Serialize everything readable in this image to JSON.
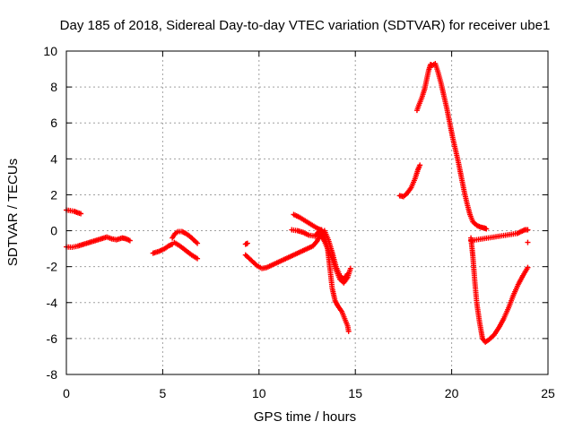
{
  "chart_data": {
    "type": "scatter",
    "title": "Day 185 of 2018, Sidereal Day-to-day VTEC variation (SDTVAR) for receiver ube1",
    "xlabel": "GPS time / hours",
    "ylabel": "SDTVAR / TECUs",
    "xlim": [
      0,
      25
    ],
    "ylim": [
      -8,
      10
    ],
    "xticks": [
      0,
      5,
      10,
      15,
      20,
      25
    ],
    "yticks": [
      -8,
      -6,
      -4,
      -2,
      0,
      2,
      4,
      6,
      8,
      10
    ],
    "grid": true,
    "marker": "+",
    "color": "#ff0000",
    "segments": [
      [
        [
          0.0,
          1.15
        ],
        [
          0.2,
          1.12
        ],
        [
          0.4,
          1.08
        ],
        [
          0.6,
          1.0
        ],
        [
          0.75,
          0.95
        ]
      ],
      [
        [
          0.0,
          -0.9
        ],
        [
          0.3,
          -0.92
        ],
        [
          0.6,
          -0.85
        ],
        [
          0.9,
          -0.75
        ],
        [
          1.2,
          -0.65
        ],
        [
          1.5,
          -0.55
        ],
        [
          1.8,
          -0.45
        ],
        [
          2.1,
          -0.35
        ],
        [
          2.35,
          -0.45
        ],
        [
          2.6,
          -0.5
        ],
        [
          2.9,
          -0.4
        ],
        [
          3.1,
          -0.45
        ],
        [
          3.3,
          -0.55
        ]
      ],
      [
        [
          4.5,
          -1.25
        ],
        [
          4.8,
          -1.15
        ],
        [
          5.1,
          -1.0
        ],
        [
          5.3,
          -0.85
        ],
        [
          5.5,
          -0.75
        ]
      ],
      [
        [
          5.5,
          -0.4
        ],
        [
          5.65,
          -0.15
        ],
        [
          5.8,
          -0.05
        ],
        [
          6.0,
          -0.05
        ],
        [
          6.2,
          -0.15
        ],
        [
          6.4,
          -0.3
        ],
        [
          6.6,
          -0.5
        ],
        [
          6.8,
          -0.7
        ]
      ],
      [
        [
          5.6,
          -0.65
        ],
        [
          5.9,
          -0.85
        ],
        [
          6.2,
          -1.1
        ],
        [
          6.5,
          -1.35
        ],
        [
          6.8,
          -1.55
        ]
      ],
      [
        [
          9.3,
          -0.75
        ],
        [
          9.4,
          -0.7
        ]
      ],
      [
        [
          9.3,
          -1.35
        ],
        [
          9.6,
          -1.65
        ],
        [
          9.9,
          -1.95
        ],
        [
          10.15,
          -2.1
        ],
        [
          10.4,
          -2.05
        ],
        [
          10.7,
          -1.9
        ],
        [
          11.0,
          -1.75
        ],
        [
          11.3,
          -1.6
        ],
        [
          11.6,
          -1.45
        ],
        [
          11.9,
          -1.3
        ],
        [
          12.2,
          -1.15
        ],
        [
          12.5,
          -1.0
        ],
        [
          12.8,
          -0.85
        ],
        [
          13.0,
          -0.6
        ],
        [
          13.15,
          -0.3
        ],
        [
          13.25,
          0.0
        ]
      ],
      [
        [
          11.8,
          0.9
        ],
        [
          12.1,
          0.75
        ],
        [
          12.4,
          0.55
        ],
        [
          12.7,
          0.35
        ],
        [
          13.0,
          0.15
        ],
        [
          13.2,
          0.05
        ]
      ],
      [
        [
          11.7,
          0.05
        ],
        [
          12.0,
          0.0
        ],
        [
          12.3,
          -0.1
        ],
        [
          12.6,
          -0.25
        ],
        [
          12.9,
          -0.3
        ],
        [
          13.1,
          -0.05
        ],
        [
          13.25,
          0.05
        ],
        [
          13.4,
          -0.3
        ],
        [
          13.55,
          -0.9
        ],
        [
          13.65,
          -1.8
        ],
        [
          13.8,
          -3.2
        ],
        [
          13.95,
          -3.9
        ],
        [
          14.1,
          -4.2
        ],
        [
          14.3,
          -4.5
        ],
        [
          14.45,
          -4.9
        ],
        [
          14.6,
          -5.3
        ],
        [
          14.65,
          -5.6
        ]
      ],
      [
        [
          13.2,
          -0.2
        ],
        [
          13.4,
          -0.6
        ],
        [
          13.6,
          -1.1
        ],
        [
          13.8,
          -1.6
        ],
        [
          14.0,
          -2.2
        ],
        [
          14.2,
          -2.7
        ],
        [
          14.4,
          -2.9
        ],
        [
          14.6,
          -2.6
        ],
        [
          14.75,
          -2.1
        ]
      ],
      [
        [
          13.4,
          0.0
        ],
        [
          13.6,
          -0.5
        ],
        [
          13.8,
          -1.2
        ],
        [
          14.0,
          -2.0
        ],
        [
          14.2,
          -2.5
        ],
        [
          14.4,
          -2.7
        ],
        [
          14.6,
          -2.4
        ]
      ],
      [
        [
          17.3,
          1.95
        ],
        [
          17.5,
          1.9
        ],
        [
          17.7,
          2.1
        ],
        [
          17.9,
          2.4
        ],
        [
          18.1,
          2.9
        ],
        [
          18.25,
          3.4
        ],
        [
          18.35,
          3.65
        ]
      ],
      [
        [
          18.2,
          6.7
        ],
        [
          18.3,
          7.0
        ],
        [
          18.45,
          7.4
        ],
        [
          18.6,
          7.9
        ],
        [
          18.7,
          8.4
        ],
        [
          18.8,
          8.9
        ],
        [
          18.9,
          9.25
        ],
        [
          19.0,
          9.2
        ],
        [
          19.15,
          9.3
        ],
        [
          19.3,
          8.8
        ],
        [
          19.45,
          8.2
        ],
        [
          19.6,
          7.5
        ],
        [
          19.75,
          6.8
        ],
        [
          19.9,
          6.0
        ],
        [
          20.05,
          5.2
        ],
        [
          20.2,
          4.5
        ],
        [
          20.35,
          3.8
        ],
        [
          20.5,
          3.0
        ],
        [
          20.65,
          2.2
        ],
        [
          20.8,
          1.5
        ],
        [
          20.95,
          0.9
        ],
        [
          21.1,
          0.5
        ],
        [
          21.3,
          0.3
        ],
        [
          21.5,
          0.2
        ],
        [
          21.7,
          0.15
        ],
        [
          21.8,
          0.1
        ]
      ],
      [
        [
          21.0,
          -0.55
        ],
        [
          21.3,
          -0.5
        ],
        [
          21.6,
          -0.45
        ],
        [
          21.9,
          -0.4
        ],
        [
          22.2,
          -0.35
        ],
        [
          22.5,
          -0.3
        ],
        [
          22.8,
          -0.25
        ],
        [
          23.1,
          -0.2
        ],
        [
          23.4,
          -0.15
        ],
        [
          23.6,
          -0.05
        ],
        [
          23.8,
          0.05
        ],
        [
          23.95,
          0.05
        ]
      ],
      [
        [
          21.0,
          -0.4
        ],
        [
          21.1,
          -1.4
        ],
        [
          21.2,
          -2.8
        ],
        [
          21.3,
          -4.0
        ],
        [
          21.45,
          -5.1
        ],
        [
          21.6,
          -6.0
        ],
        [
          21.75,
          -6.2
        ],
        [
          21.95,
          -6.05
        ],
        [
          22.2,
          -5.8
        ],
        [
          22.45,
          -5.4
        ],
        [
          22.7,
          -4.9
        ],
        [
          22.95,
          -4.3
        ],
        [
          23.2,
          -3.6
        ],
        [
          23.45,
          -3.0
        ],
        [
          23.7,
          -2.5
        ],
        [
          23.95,
          -2.05
        ]
      ],
      [
        [
          23.95,
          -0.65
        ]
      ]
    ]
  }
}
